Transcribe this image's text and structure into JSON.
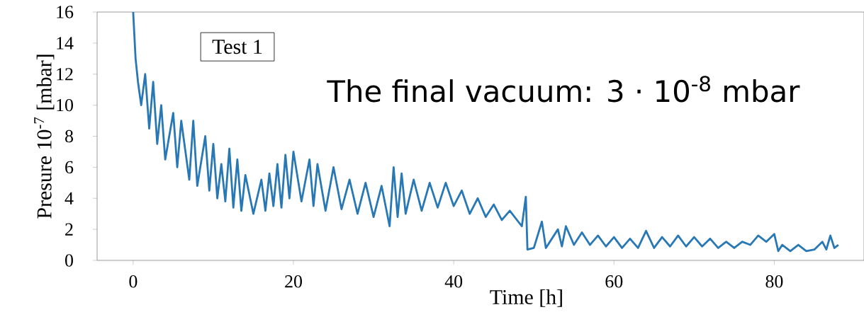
{
  "chart_data": {
    "type": "line",
    "xlabel": "Time [h]",
    "ylabel": "Presure 10$^{-7}$ [mbar]",
    "xlim": [
      -4.5,
      91.2
    ],
    "ylim": [
      0,
      16
    ],
    "xticks": [
      0,
      20,
      40,
      60,
      80
    ],
    "yticks": [
      0,
      2,
      4,
      6,
      8,
      10,
      12,
      14,
      16
    ],
    "annotations": [
      "Test 1",
      "The final vacuum: 3 · 10$^{-8}$  mbar"
    ],
    "series": [
      {
        "color": "#2878b5",
        "x": [
          0,
          0.3,
          0.6,
          1,
          1.5,
          2,
          2.5,
          3,
          3.5,
          4,
          5,
          5.5,
          6,
          7,
          7.5,
          8,
          9,
          9.5,
          10,
          10.5,
          11,
          11.5,
          12,
          12.5,
          13,
          13.5,
          14,
          15,
          16,
          16.5,
          17,
          17.5,
          18,
          18.5,
          19,
          19.5,
          20,
          21,
          22,
          22.5,
          23,
          24,
          25,
          26,
          27,
          28,
          29,
          30,
          31,
          32,
          32.5,
          33,
          33.5,
          34,
          35,
          36,
          37,
          38,
          39,
          40,
          41,
          42,
          43,
          44,
          45,
          46,
          47,
          48.5,
          49,
          49.2,
          50,
          51,
          51.5,
          53,
          53.5,
          54,
          55,
          56,
          57,
          58,
          59,
          60,
          61,
          62,
          63,
          64,
          65,
          66,
          67,
          68,
          69,
          70,
          71,
          72,
          73,
          74,
          75,
          76,
          77,
          78,
          79,
          80,
          80.5,
          81,
          82,
          83,
          84,
          85,
          86,
          86.5,
          87,
          87.5,
          88
        ],
        "values": [
          16,
          13,
          11.5,
          10,
          12,
          8.5,
          11.5,
          7.5,
          10,
          6.5,
          9.5,
          6,
          9,
          5.2,
          9,
          4.8,
          8,
          4.5,
          7.5,
          4.0,
          6.2,
          3.8,
          7.2,
          3.4,
          6.5,
          3.2,
          5.5,
          3.0,
          5.2,
          3.2,
          5.6,
          3.5,
          6.2,
          3.4,
          6.8,
          4.0,
          7.0,
          3.8,
          6.5,
          3.5,
          6.2,
          3.2,
          6.0,
          3.3,
          5.2,
          3.0,
          5.0,
          2.8,
          4.8,
          2.2,
          6.0,
          2.8,
          5.6,
          3.0,
          5.2,
          3.2,
          5.0,
          3.4,
          5.0,
          3.5,
          4.5,
          3.0,
          4.0,
          2.8,
          3.6,
          2.6,
          3.2,
          2.2,
          4.1,
          0.7,
          0.8,
          2.5,
          0.8,
          2.0,
          0.9,
          2.2,
          1.0,
          1.8,
          1.0,
          1.6,
          0.9,
          1.5,
          0.8,
          1.4,
          0.8,
          1.9,
          0.8,
          1.5,
          0.9,
          1.6,
          0.9,
          1.5,
          0.9,
          1.4,
          0.8,
          1.2,
          0.8,
          1.2,
          1.0,
          1.6,
          1.2,
          1.7,
          0.6,
          1.0,
          0.6,
          1.0,
          0.6,
          0.7,
          1.2,
          0.7,
          1.6,
          0.8,
          1.0
        ]
      }
    ]
  }
}
